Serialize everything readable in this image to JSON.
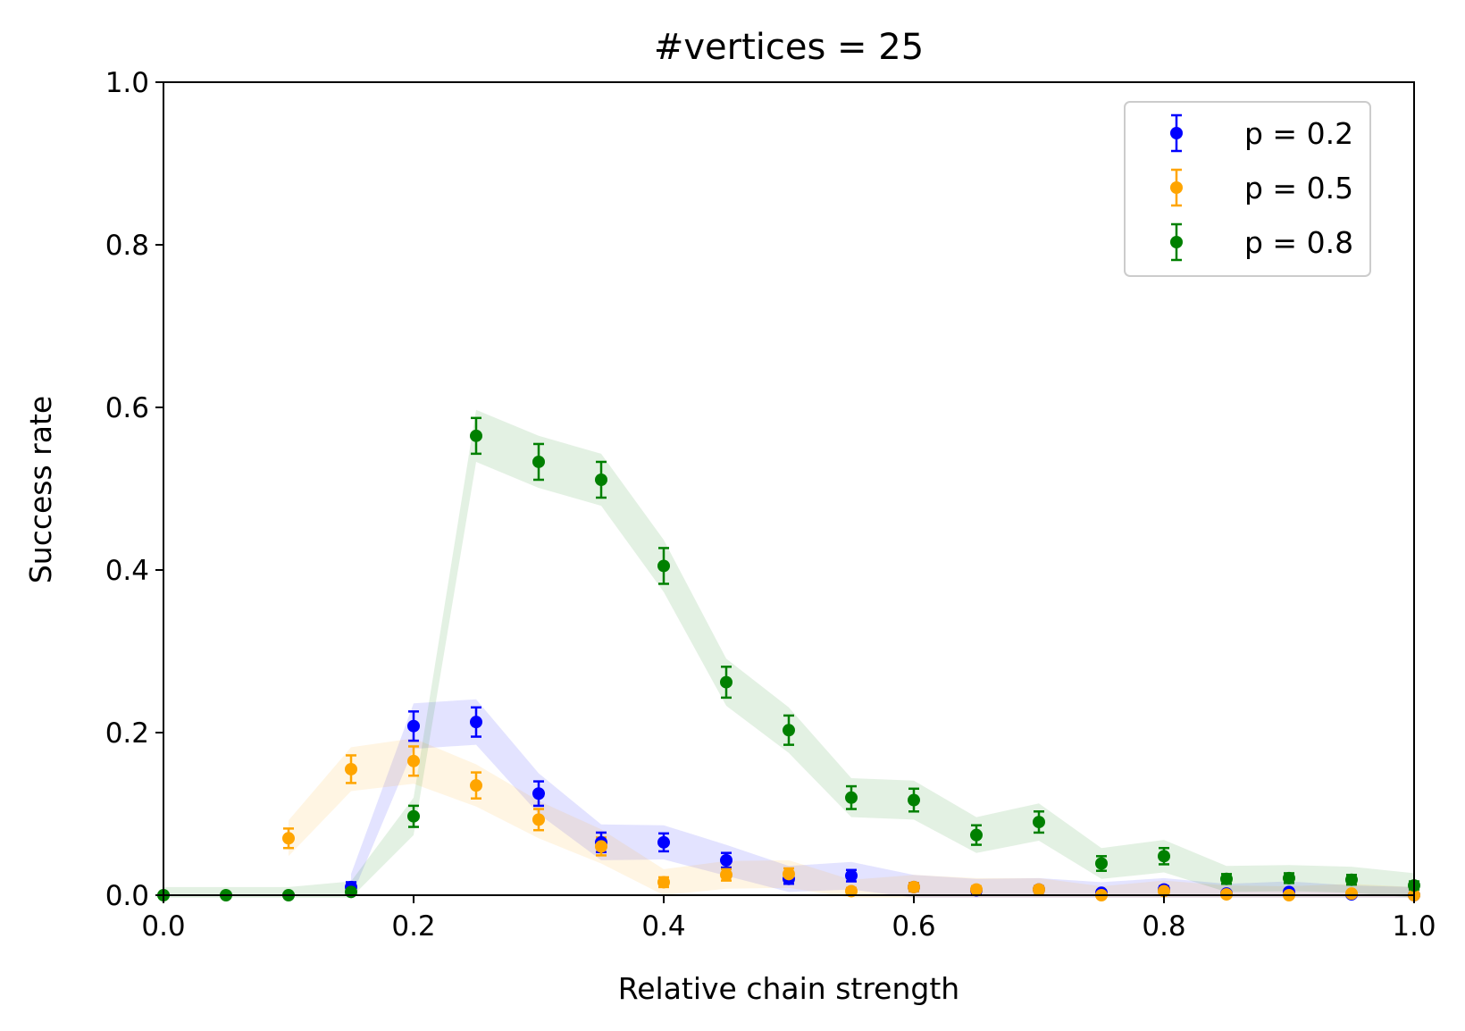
{
  "chart_data": {
    "type": "scatter",
    "title": "#vertices = 25",
    "xlabel": "Relative chain strength",
    "ylabel": "Success rate",
    "xlim": [
      0.0,
      1.0
    ],
    "ylim": [
      0.0,
      1.0
    ],
    "xticks": [
      "0.0",
      "0.2",
      "0.4",
      "0.6",
      "0.8",
      "1.0"
    ],
    "yticks": [
      "0.0",
      "0.2",
      "0.4",
      "0.6",
      "0.8",
      "1.0"
    ],
    "grid": false,
    "legend_position": "top-right",
    "x": [
      0.0,
      0.05,
      0.1,
      0.15,
      0.2,
      0.25,
      0.3,
      0.35,
      0.4,
      0.45,
      0.5,
      0.55,
      0.6,
      0.65,
      0.7,
      0.75,
      0.8,
      0.85,
      0.9,
      0.95,
      1.0
    ],
    "series": [
      {
        "name": "p = 0.2",
        "color": "#0000ff",
        "points": [
          [
            0.15,
            0.01,
            0.006
          ],
          [
            0.2,
            0.208,
            0.018
          ],
          [
            0.25,
            0.213,
            0.018
          ],
          [
            0.3,
            0.125,
            0.015
          ],
          [
            0.35,
            0.065,
            0.012
          ],
          [
            0.4,
            0.065,
            0.011
          ],
          [
            0.45,
            0.043,
            0.009
          ],
          [
            0.5,
            0.02,
            0.006
          ],
          [
            0.55,
            0.024,
            0.007
          ],
          [
            0.6,
            0.01,
            0.005
          ],
          [
            0.65,
            0.006,
            0.004
          ],
          [
            0.7,
            0.007,
            0.004
          ],
          [
            0.75,
            0.003,
            0.003
          ],
          [
            0.8,
            0.007,
            0.004
          ],
          [
            0.85,
            0.002,
            0.002
          ],
          [
            0.9,
            0.004,
            0.003
          ],
          [
            0.95,
            0.001,
            0.001
          ],
          [
            1.0,
            0.0,
            0.0
          ]
        ]
      },
      {
        "name": "p = 0.5",
        "color": "#ffa500",
        "points": [
          [
            0.1,
            0.07,
            0.012
          ],
          [
            0.15,
            0.155,
            0.017
          ],
          [
            0.2,
            0.165,
            0.018
          ],
          [
            0.25,
            0.135,
            0.016
          ],
          [
            0.3,
            0.093,
            0.013
          ],
          [
            0.35,
            0.06,
            0.011
          ],
          [
            0.4,
            0.016,
            0.006
          ],
          [
            0.45,
            0.025,
            0.007
          ],
          [
            0.5,
            0.026,
            0.007
          ],
          [
            0.55,
            0.005,
            0.004
          ],
          [
            0.6,
            0.01,
            0.005
          ],
          [
            0.65,
            0.007,
            0.004
          ],
          [
            0.7,
            0.007,
            0.004
          ],
          [
            0.75,
            0.0,
            0.001
          ],
          [
            0.8,
            0.005,
            0.003
          ],
          [
            0.85,
            0.001,
            0.001
          ],
          [
            0.9,
            0.0,
            0.001
          ],
          [
            0.95,
            0.002,
            0.002
          ],
          [
            1.0,
            0.0,
            0.0
          ]
        ]
      },
      {
        "name": "p = 0.8",
        "color": "#008000",
        "points": [
          [
            0.0,
            0.0,
            0.0
          ],
          [
            0.05,
            0.0,
            0.0
          ],
          [
            0.1,
            0.0,
            0.0
          ],
          [
            0.15,
            0.004,
            0.003
          ],
          [
            0.2,
            0.097,
            0.013
          ],
          [
            0.25,
            0.565,
            0.022
          ],
          [
            0.3,
            0.533,
            0.022
          ],
          [
            0.35,
            0.511,
            0.022
          ],
          [
            0.4,
            0.405,
            0.022
          ],
          [
            0.45,
            0.262,
            0.019
          ],
          [
            0.5,
            0.203,
            0.018
          ],
          [
            0.55,
            0.12,
            0.014
          ],
          [
            0.6,
            0.117,
            0.014
          ],
          [
            0.65,
            0.074,
            0.012
          ],
          [
            0.7,
            0.09,
            0.013
          ],
          [
            0.75,
            0.039,
            0.009
          ],
          [
            0.8,
            0.048,
            0.01
          ],
          [
            0.85,
            0.02,
            0.006
          ],
          [
            0.9,
            0.021,
            0.006
          ],
          [
            0.95,
            0.019,
            0.006
          ],
          [
            1.0,
            0.012,
            0.005
          ]
        ]
      }
    ]
  }
}
